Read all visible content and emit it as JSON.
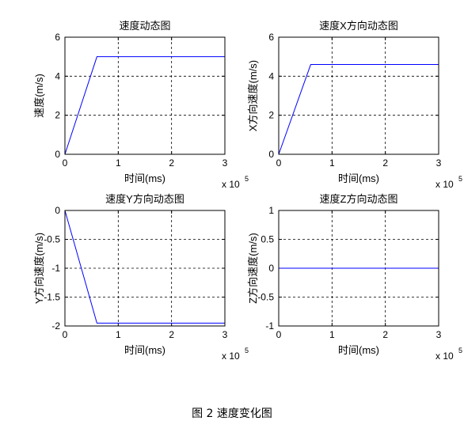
{
  "figure": {
    "caption": "图 2  速度变化图"
  },
  "chart_data": [
    {
      "type": "line",
      "title": "速度动态图",
      "xlabel": "时间(ms)",
      "ylabel": "速度(m/s)",
      "x_exponent": "x 10",
      "x_exponent_power": "5",
      "xlim": [
        0,
        3
      ],
      "ylim": [
        0,
        6
      ],
      "xticks": [
        0,
        1,
        2,
        3
      ],
      "yticks": [
        0,
        2,
        4,
        6
      ],
      "xticklabels": [
        "0",
        "1",
        "2",
        "3"
      ],
      "yticklabels": [
        "0",
        "2",
        "4",
        "6"
      ],
      "grid": true,
      "series": [
        {
          "x": [
            0,
            0.6,
            3
          ],
          "y": [
            0,
            5,
            5
          ],
          "color": "#0000ff"
        }
      ]
    },
    {
      "type": "line",
      "title": "速度X方向动态图",
      "xlabel": "时间(ms)",
      "ylabel": "X方向速度(m/s)",
      "x_exponent": "x 10",
      "x_exponent_power": "5",
      "xlim": [
        0,
        3
      ],
      "ylim": [
        0,
        6
      ],
      "xticks": [
        0,
        1,
        2,
        3
      ],
      "yticks": [
        0,
        2,
        4,
        6
      ],
      "xticklabels": [
        "0",
        "1",
        "2",
        "3"
      ],
      "yticklabels": [
        "0",
        "2",
        "4",
        "6"
      ],
      "grid": true,
      "series": [
        {
          "x": [
            0,
            0.6,
            3
          ],
          "y": [
            0,
            4.6,
            4.6
          ],
          "color": "#0000ff"
        }
      ]
    },
    {
      "type": "line",
      "title": "速度Y方向动态图",
      "xlabel": "时间(ms)",
      "ylabel": "Y方向速度(m/s)",
      "x_exponent": "x 10",
      "x_exponent_power": "5",
      "xlim": [
        0,
        3
      ],
      "ylim": [
        -2,
        0
      ],
      "xticks": [
        0,
        1,
        2,
        3
      ],
      "yticks": [
        -2,
        -1.5,
        -1,
        -0.5,
        0
      ],
      "xticklabels": [
        "0",
        "1",
        "2",
        "3"
      ],
      "yticklabels": [
        "-2",
        "-1.5",
        "-1",
        "-0.5",
        "0"
      ],
      "grid": true,
      "series": [
        {
          "x": [
            0,
            0.6,
            3
          ],
          "y": [
            0,
            -1.95,
            -1.95
          ],
          "color": "#0000ff"
        }
      ]
    },
    {
      "type": "line",
      "title": "速度Z方向动态图",
      "xlabel": "时间(ms)",
      "ylabel": "Z方向速度(m/s)",
      "x_exponent": "x 10",
      "x_exponent_power": "5",
      "xlim": [
        0,
        3
      ],
      "ylim": [
        -1,
        1
      ],
      "xticks": [
        0,
        1,
        2,
        3
      ],
      "yticks": [
        -1,
        -0.5,
        0,
        0.5,
        1
      ],
      "xticklabels": [
        "0",
        "1",
        "2",
        "3"
      ],
      "yticklabels": [
        "-1",
        "-0.5",
        "0",
        "0.5",
        "1"
      ],
      "grid": true,
      "series": [
        {
          "x": [
            0,
            3
          ],
          "y": [
            0,
            0
          ],
          "color": "#0000ff"
        }
      ]
    }
  ]
}
